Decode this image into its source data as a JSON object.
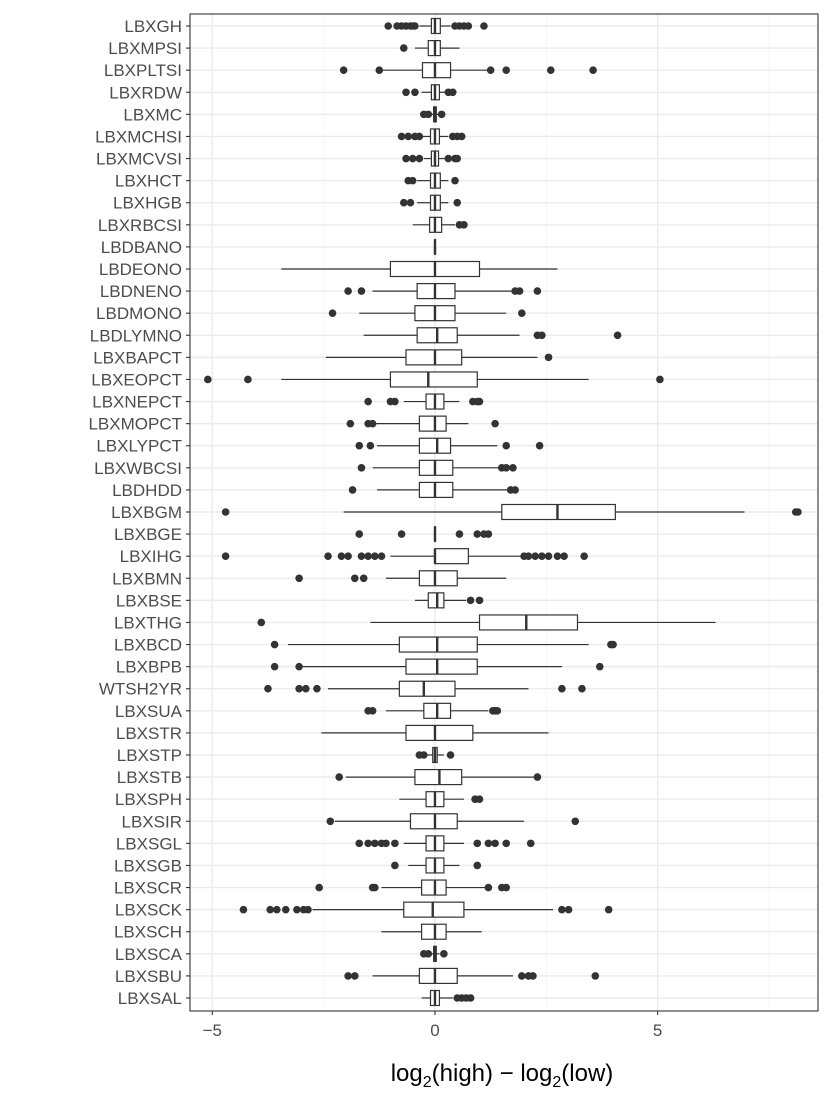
{
  "chart_data": {
    "type": "boxplot",
    "orientation": "horizontal",
    "xlabel_parts": [
      "log",
      "2",
      "(high) − log",
      "2",
      "(low)"
    ],
    "xlim": [
      -5.5,
      8.6
    ],
    "x_ticks": [
      -5,
      0,
      5
    ],
    "x_tick_labels": [
      "−5",
      "0",
      "5"
    ],
    "grid": true,
    "categories": [
      "LBXGH",
      "LBXMPSI",
      "LBXPLTSI",
      "LBXRDW",
      "LBXMC",
      "LBXMCHSI",
      "LBXMCVSI",
      "LBXHCT",
      "LBXHGB",
      "LBXRBCSI",
      "LBDBANO",
      "LBDEONO",
      "LBDNENO",
      "LBDMONO",
      "LBDLYMNO",
      "LBXBAPCT",
      "LBXEOPCT",
      "LBXNEPCT",
      "LBXMOPCT",
      "LBXLYPCT",
      "LBXWBCSI",
      "LBDHDD",
      "LBXBGM",
      "LBXBGE",
      "LBXIHG",
      "LBXBMN",
      "LBXBSE",
      "LBXTHG",
      "LBXBCD",
      "LBXBPB",
      "WTSH2YR",
      "LBXSUA",
      "LBXSTR",
      "LBXSTP",
      "LBXSTB",
      "LBXSPH",
      "LBXSIR",
      "LBXSGL",
      "LBXSGB",
      "LBXSCR",
      "LBXSCK",
      "LBXSCH",
      "LBXSCA",
      "LBXSBU",
      "LBXSAL"
    ],
    "boxes": [
      {
        "whisker_low": -0.35,
        "q1": -0.08,
        "median": 0.0,
        "q3": 0.12,
        "whisker_high": 0.35,
        "outliers": [
          -1.05,
          -0.85,
          -0.75,
          -0.65,
          -0.55,
          -0.5,
          -0.45,
          0.45,
          0.55,
          0.65,
          0.75,
          1.1
        ]
      },
      {
        "whisker_low": -0.45,
        "q1": -0.15,
        "median": 0.0,
        "q3": 0.12,
        "whisker_high": 0.55,
        "outliers": [
          -0.7
        ]
      },
      {
        "whisker_low": -1.2,
        "q1": -0.28,
        "median": 0.0,
        "q3": 0.35,
        "whisker_high": 1.2,
        "outliers": [
          -2.05,
          -1.25,
          1.25,
          1.6,
          2.6,
          3.55
        ]
      },
      {
        "whisker_low": -0.3,
        "q1": -0.08,
        "median": 0.0,
        "q3": 0.1,
        "whisker_high": 0.25,
        "outliers": [
          -0.65,
          -0.45,
          0.3,
          0.4
        ]
      },
      {
        "whisker_low": -0.1,
        "q1": -0.03,
        "median": 0.0,
        "q3": 0.03,
        "whisker_high": 0.1,
        "outliers": [
          -0.25,
          -0.15,
          0.15
        ]
      },
      {
        "whisker_low": -0.3,
        "q1": -0.1,
        "median": 0.0,
        "q3": 0.1,
        "whisker_high": 0.3,
        "outliers": [
          -0.75,
          -0.6,
          -0.45,
          -0.35,
          0.4,
          0.5,
          0.6
        ]
      },
      {
        "whisker_low": -0.25,
        "q1": -0.08,
        "median": 0.0,
        "q3": 0.08,
        "whisker_high": 0.25,
        "outliers": [
          -0.65,
          -0.5,
          -0.35,
          0.3,
          0.45,
          0.5
        ]
      },
      {
        "whisker_low": -0.4,
        "q1": -0.1,
        "median": 0.0,
        "q3": 0.12,
        "whisker_high": 0.3,
        "outliers": [
          -0.6,
          -0.5,
          0.45
        ]
      },
      {
        "whisker_low": -0.4,
        "q1": -0.1,
        "median": 0.0,
        "q3": 0.12,
        "whisker_high": 0.3,
        "outliers": [
          -0.7,
          -0.55,
          0.5
        ]
      },
      {
        "whisker_low": -0.5,
        "q1": -0.12,
        "median": 0.0,
        "q3": 0.15,
        "whisker_high": 0.45,
        "outliers": [
          0.55,
          0.65
        ]
      },
      {
        "whisker_low": 0.0,
        "q1": 0.0,
        "median": 0.0,
        "q3": 0.0,
        "whisker_high": 0.0,
        "outliers": []
      },
      {
        "whisker_low": -3.45,
        "q1": -1.0,
        "median": 0.0,
        "q3": 1.0,
        "whisker_high": 2.75,
        "outliers": []
      },
      {
        "whisker_low": -1.4,
        "q1": -0.4,
        "median": 0.0,
        "q3": 0.45,
        "whisker_high": 1.75,
        "outliers": [
          -1.95,
          -1.65,
          1.8,
          1.9,
          2.3
        ]
      },
      {
        "whisker_low": -1.7,
        "q1": -0.45,
        "median": 0.0,
        "q3": 0.45,
        "whisker_high": 1.6,
        "outliers": [
          -2.3,
          1.95
        ]
      },
      {
        "whisker_low": -1.6,
        "q1": -0.4,
        "median": 0.05,
        "q3": 0.5,
        "whisker_high": 1.9,
        "outliers": [
          2.3,
          2.4,
          4.1
        ]
      },
      {
        "whisker_low": -2.45,
        "q1": -0.65,
        "median": 0.0,
        "q3": 0.6,
        "whisker_high": 2.3,
        "outliers": [
          2.55
        ]
      },
      {
        "whisker_low": -3.45,
        "q1": -1.0,
        "median": -0.15,
        "q3": 0.95,
        "whisker_high": 3.45,
        "outliers": [
          -5.1,
          -4.2,
          5.05
        ]
      },
      {
        "whisker_low": -0.7,
        "q1": -0.2,
        "median": 0.0,
        "q3": 0.2,
        "whisker_high": 0.55,
        "outliers": [
          -1.5,
          -1.0,
          -0.9,
          0.85,
          0.95,
          1.0
        ]
      },
      {
        "whisker_low": -1.35,
        "q1": -0.35,
        "median": 0.0,
        "q3": 0.25,
        "whisker_high": 0.75,
        "outliers": [
          -1.9,
          -1.5,
          -1.4,
          1.35
        ]
      },
      {
        "whisker_low": -1.3,
        "q1": -0.35,
        "median": 0.05,
        "q3": 0.35,
        "whisker_high": 1.4,
        "outliers": [
          -1.7,
          -1.45,
          1.6,
          2.35
        ]
      },
      {
        "whisker_low": -1.4,
        "q1": -0.35,
        "median": 0.0,
        "q3": 0.4,
        "whisker_high": 1.5,
        "outliers": [
          -1.65,
          1.5,
          1.6,
          1.75
        ]
      },
      {
        "whisker_low": -1.3,
        "q1": -0.35,
        "median": 0.0,
        "q3": 0.4,
        "whisker_high": 1.7,
        "outliers": [
          -1.85,
          1.7,
          1.8
        ]
      },
      {
        "whisker_low": -2.05,
        "q1": 1.5,
        "median": 2.75,
        "q3": 4.05,
        "whisker_high": 6.95,
        "outliers": [
          -4.7,
          8.1,
          8.15
        ]
      },
      {
        "whisker_low": 0.0,
        "q1": 0.0,
        "median": 0.0,
        "q3": 0.0,
        "whisker_high": 0.0,
        "outliers": [
          -1.7,
          -0.75,
          0.55,
          0.95,
          1.1,
          1.2
        ]
      },
      {
        "whisker_low": -1.0,
        "q1": 0.0,
        "median": 0.0,
        "q3": 0.75,
        "whisker_high": 1.95,
        "outliers": [
          -4.7,
          -2.4,
          -2.1,
          -1.95,
          -1.65,
          -1.5,
          -1.35,
          -1.2,
          2.0,
          2.1,
          2.25,
          2.4,
          2.55,
          2.75,
          2.9,
          3.35
        ]
      },
      {
        "whisker_low": -1.1,
        "q1": -0.35,
        "median": 0.0,
        "q3": 0.5,
        "whisker_high": 1.6,
        "outliers": [
          -3.05,
          -1.8,
          -1.6
        ]
      },
      {
        "whisker_low": -0.45,
        "q1": -0.15,
        "median": 0.05,
        "q3": 0.2,
        "whisker_high": 0.7,
        "outliers": [
          0.8,
          1.0
        ]
      },
      {
        "whisker_low": -1.45,
        "q1": 1.0,
        "median": 2.05,
        "q3": 3.2,
        "whisker_high": 6.3,
        "outliers": [
          -3.9
        ]
      },
      {
        "whisker_low": -3.3,
        "q1": -0.8,
        "median": 0.05,
        "q3": 0.95,
        "whisker_high": 3.45,
        "outliers": [
          -3.6,
          3.95,
          4.0
        ]
      },
      {
        "whisker_low": -3.0,
        "q1": -0.65,
        "median": 0.05,
        "q3": 0.95,
        "whisker_high": 2.85,
        "outliers": [
          -3.6,
          -3.05,
          3.7
        ]
      },
      {
        "whisker_low": -2.4,
        "q1": -0.8,
        "median": -0.25,
        "q3": 0.45,
        "whisker_high": 2.1,
        "outliers": [
          -3.75,
          -3.05,
          -2.9,
          -2.65,
          2.85,
          3.3
        ]
      },
      {
        "whisker_low": -1.1,
        "q1": -0.25,
        "median": 0.05,
        "q3": 0.35,
        "whisker_high": 1.2,
        "outliers": [
          -1.5,
          -1.4,
          1.3,
          1.35,
          1.4
        ]
      },
      {
        "whisker_low": -2.55,
        "q1": -0.65,
        "median": 0.0,
        "q3": 0.85,
        "whisker_high": 2.55,
        "outliers": []
      },
      {
        "whisker_low": -0.2,
        "q1": -0.05,
        "median": 0.0,
        "q3": 0.05,
        "whisker_high": 0.2,
        "outliers": [
          -0.35,
          -0.25,
          0.35
        ]
      },
      {
        "whisker_low": -2.0,
        "q1": -0.45,
        "median": 0.1,
        "q3": 0.6,
        "whisker_high": 2.3,
        "outliers": [
          -2.15,
          2.3
        ]
      },
      {
        "whisker_low": -0.8,
        "q1": -0.2,
        "median": 0.0,
        "q3": 0.2,
        "whisker_high": 0.65,
        "outliers": [
          0.9,
          1.0
        ]
      },
      {
        "whisker_low": -2.25,
        "q1": -0.55,
        "median": 0.0,
        "q3": 0.5,
        "whisker_high": 2.0,
        "outliers": [
          -2.35,
          3.15
        ]
      },
      {
        "whisker_low": -0.7,
        "q1": -0.2,
        "median": 0.0,
        "q3": 0.2,
        "whisker_high": 0.65,
        "outliers": [
          -1.7,
          -1.5,
          -1.35,
          -1.2,
          -1.1,
          -0.9,
          0.95,
          1.2,
          1.35,
          1.6,
          2.15
        ]
      },
      {
        "whisker_low": -0.6,
        "q1": -0.2,
        "median": 0.0,
        "q3": 0.2,
        "whisker_high": 0.55,
        "outliers": [
          -0.9,
          0.95
        ]
      },
      {
        "whisker_low": -1.2,
        "q1": -0.3,
        "median": 0.0,
        "q3": 0.25,
        "whisker_high": 1.15,
        "outliers": [
          -2.6,
          -1.4,
          -1.35,
          1.2,
          1.5,
          1.6
        ]
      },
      {
        "whisker_low": -2.75,
        "q1": -0.7,
        "median": -0.05,
        "q3": 0.65,
        "whisker_high": 2.65,
        "outliers": [
          -4.3,
          -3.7,
          -3.55,
          -3.35,
          -3.1,
          -2.95,
          -2.85,
          2.85,
          3.0,
          3.9
        ]
      },
      {
        "whisker_low": -1.2,
        "q1": -0.3,
        "median": 0.0,
        "q3": 0.25,
        "whisker_high": 1.05,
        "outliers": []
      },
      {
        "whisker_low": -0.1,
        "q1": -0.03,
        "median": 0.0,
        "q3": 0.03,
        "whisker_high": 0.1,
        "outliers": [
          -0.25,
          -0.15,
          0.2
        ]
      },
      {
        "whisker_low": -1.4,
        "q1": -0.35,
        "median": 0.0,
        "q3": 0.5,
        "whisker_high": 1.75,
        "outliers": [
          -1.95,
          -1.8,
          1.95,
          2.1,
          2.2,
          3.6
        ]
      },
      {
        "whisker_low": -0.3,
        "q1": -0.1,
        "median": 0.0,
        "q3": 0.1,
        "whisker_high": 0.4,
        "outliers": [
          0.5,
          0.6,
          0.7,
          0.8
        ]
      }
    ]
  },
  "colors": {
    "panel_border": "#333333",
    "grid_major": "#ebebeb",
    "grid_minor": "#f5f5f5",
    "box_stroke": "#333333",
    "outlier": "#333333",
    "label": "#4d4d4d",
    "title": "#000000"
  }
}
